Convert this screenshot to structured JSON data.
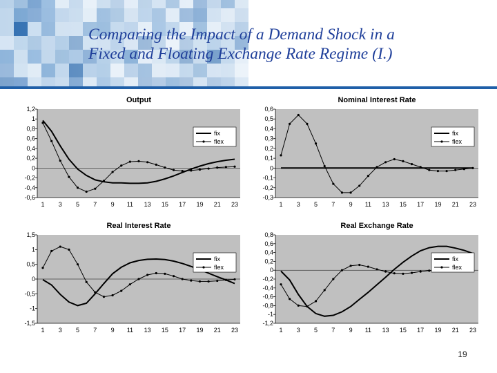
{
  "slide": {
    "title_line1": "Comparing the Impact of a Demand Shock in a",
    "title_line2": "Fixed and Floating Exchange Rate Regime (I.)",
    "page_number": "19",
    "colors": {
      "title": "#1f3f9a",
      "plot_bg": "#c0c0c0",
      "series": "#000000"
    }
  },
  "chart_data": [
    {
      "type": "line",
      "title": "Output",
      "x": [
        1,
        2,
        3,
        4,
        5,
        6,
        7,
        8,
        9,
        10,
        11,
        12,
        13,
        14,
        15,
        16,
        17,
        18,
        19,
        20,
        21,
        22,
        23
      ],
      "xticks": [
        "1",
        "3",
        "5",
        "7",
        "9",
        "11",
        "13",
        "15",
        "17",
        "19",
        "21",
        "23"
      ],
      "ylim": [
        -0.6,
        1.2
      ],
      "yticks": [
        "1,2",
        "1",
        "0,8",
        "0,6",
        "0,4",
        "0,2",
        "0",
        "-0,2",
        "-0,4",
        "-0,6"
      ],
      "legend": "right",
      "series": [
        {
          "name": "fix",
          "marker": false,
          "values": [
            0.97,
            0.75,
            0.45,
            0.18,
            -0.02,
            -0.15,
            -0.24,
            -0.28,
            -0.3,
            -0.3,
            -0.31,
            -0.31,
            -0.3,
            -0.27,
            -0.22,
            -0.16,
            -0.09,
            -0.02,
            0.04,
            0.09,
            0.13,
            0.16,
            0.18
          ]
        },
        {
          "name": "flex",
          "marker": true,
          "values": [
            0.92,
            0.55,
            0.15,
            -0.18,
            -0.4,
            -0.48,
            -0.42,
            -0.26,
            -0.08,
            0.05,
            0.13,
            0.14,
            0.12,
            0.07,
            0.01,
            -0.04,
            -0.06,
            -0.05,
            -0.03,
            -0.01,
            0.01,
            0.02,
            0.03
          ]
        }
      ]
    },
    {
      "type": "line",
      "title": "Nominal Interest Rate",
      "x": [
        1,
        2,
        3,
        4,
        5,
        6,
        7,
        8,
        9,
        10,
        11,
        12,
        13,
        14,
        15,
        16,
        17,
        18,
        19,
        20,
        21,
        22,
        23
      ],
      "xticks": [
        "1",
        "3",
        "5",
        "7",
        "9",
        "11",
        "13",
        "15",
        "17",
        "19",
        "21",
        "23"
      ],
      "ylim": [
        -0.3,
        0.6
      ],
      "yticks": [
        "0,6",
        "0,5",
        "0,4",
        "0,3",
        "0,2",
        "0,1",
        "0",
        "-0,1",
        "-0,2",
        "-0,3"
      ],
      "legend": "right",
      "series": [
        {
          "name": "fix",
          "marker": false,
          "values": [
            0,
            0,
            0,
            0,
            0,
            0,
            0,
            0,
            0,
            0,
            0,
            0,
            0,
            0,
            0,
            0,
            0,
            0,
            0,
            0,
            0,
            0,
            0
          ]
        },
        {
          "name": "flex",
          "marker": true,
          "values": [
            0.13,
            0.45,
            0.54,
            0.45,
            0.25,
            0.02,
            -0.16,
            -0.25,
            -0.25,
            -0.18,
            -0.08,
            0.01,
            0.06,
            0.09,
            0.07,
            0.04,
            0.01,
            -0.02,
            -0.03,
            -0.03,
            -0.02,
            -0.01,
            0.0
          ]
        }
      ]
    },
    {
      "type": "line",
      "title": "Real Interest Rate",
      "x": [
        1,
        2,
        3,
        4,
        5,
        6,
        7,
        8,
        9,
        10,
        11,
        12,
        13,
        14,
        15,
        16,
        17,
        18,
        19,
        20,
        21,
        22,
        23
      ],
      "xticks": [
        "1",
        "3",
        "5",
        "7",
        "9",
        "11",
        "13",
        "15",
        "17",
        "19",
        "21",
        "23"
      ],
      "ylim": [
        -1.5,
        1.5
      ],
      "yticks": [
        "1,5",
        "1",
        "0,5",
        "0",
        "-0,5",
        "-1",
        "-1,5"
      ],
      "legend": "right",
      "series": [
        {
          "name": "fix",
          "marker": false,
          "values": [
            -0.02,
            -0.2,
            -0.52,
            -0.78,
            -0.9,
            -0.82,
            -0.5,
            -0.15,
            0.18,
            0.4,
            0.55,
            0.63,
            0.67,
            0.68,
            0.66,
            0.61,
            0.53,
            0.43,
            0.32,
            0.2,
            0.08,
            -0.03,
            -0.15
          ]
        },
        {
          "name": "flex",
          "marker": true,
          "values": [
            0.38,
            0.95,
            1.1,
            1.0,
            0.5,
            -0.1,
            -0.45,
            -0.6,
            -0.55,
            -0.4,
            -0.18,
            0.0,
            0.14,
            0.2,
            0.18,
            0.1,
            0.0,
            -0.05,
            -0.08,
            -0.08,
            -0.06,
            -0.03,
            -0.01
          ]
        }
      ]
    },
    {
      "type": "line",
      "title": "Real Exchange Rate",
      "x": [
        1,
        2,
        3,
        4,
        5,
        6,
        7,
        8,
        9,
        10,
        11,
        12,
        13,
        14,
        15,
        16,
        17,
        18,
        19,
        20,
        21,
        22,
        23
      ],
      "xticks": [
        "1",
        "3",
        "5",
        "7",
        "9",
        "11",
        "13",
        "15",
        "17",
        "19",
        "21",
        "23"
      ],
      "ylim": [
        -1.2,
        0.8
      ],
      "yticks": [
        "0,8",
        "0,6",
        "0,4",
        "0,2",
        "0",
        "-0,2",
        "-0,4",
        "-0,6",
        "-0,8",
        "-1",
        "-1,2"
      ],
      "legend": "right",
      "series": [
        {
          "name": "fix",
          "marker": false,
          "values": [
            -0.02,
            -0.22,
            -0.55,
            -0.82,
            -0.98,
            -1.04,
            -1.02,
            -0.94,
            -0.82,
            -0.66,
            -0.5,
            -0.33,
            -0.16,
            0.02,
            0.18,
            0.32,
            0.44,
            0.51,
            0.54,
            0.54,
            0.5,
            0.45,
            0.38
          ]
        },
        {
          "name": "flex",
          "marker": true,
          "values": [
            -0.32,
            -0.65,
            -0.8,
            -0.82,
            -0.7,
            -0.45,
            -0.2,
            0.0,
            0.1,
            0.12,
            0.08,
            0.02,
            -0.03,
            -0.07,
            -0.08,
            -0.06,
            -0.03,
            -0.01,
            0.0,
            0.01,
            0.01,
            0.01,
            0.0
          ]
        }
      ]
    }
  ]
}
